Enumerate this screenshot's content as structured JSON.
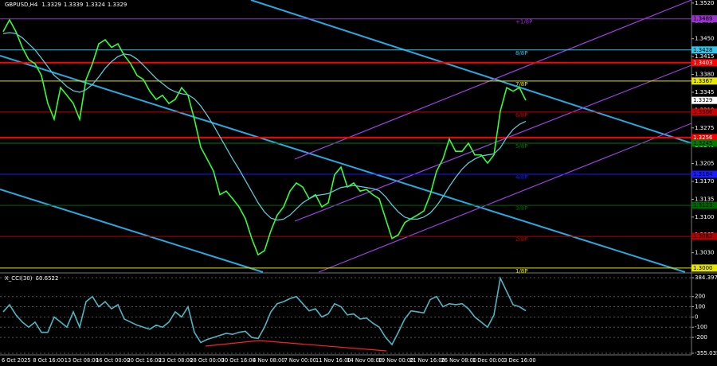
{
  "header": {
    "symbol": "GBPUSD,H4",
    "ohlc": [
      1.3329,
      1.3339,
      1.3324,
      1.3329
    ]
  },
  "chart_data": [
    {
      "type": "line",
      "x_labels": [
        "6 Oct 2025",
        "8 Oct 16:00",
        "13 Oct 08:00",
        "16 Oct 00:00",
        "20 Oct 16:00",
        "23 Oct 08:00",
        "28 Oct 00:00",
        "30 Oct 16:00",
        "4 Nov 08:00",
        "7 Nov 00:00",
        "11 Nov 16:00",
        "14 Nov 08:00",
        "19 Nov 00:00",
        "21 Nov 16:00",
        "26 Nov 08:00",
        "1 Dec 00:00",
        "3 Dec 16:00"
      ],
      "ylim": [
        1.2992,
        1.3526
      ],
      "yticks": [
        {
          "value": 1.352,
          "label": "1.3520"
        },
        {
          "value": 1.3485,
          "label": "1.3485"
        },
        {
          "value": 1.345,
          "label": "1.3450"
        },
        {
          "value": 1.3415,
          "label": "1.3415"
        },
        {
          "value": 1.338,
          "label": "1.3380"
        },
        {
          "value": 1.3345,
          "label": "1.3345"
        },
        {
          "value": 1.331,
          "label": "1.3310"
        },
        {
          "value": 1.3275,
          "label": "1.3275"
        },
        {
          "value": 1.324,
          "label": "1.3240"
        },
        {
          "value": 1.3205,
          "label": "1.3205"
        },
        {
          "value": 1.317,
          "label": "1.3170"
        },
        {
          "value": 1.3135,
          "label": "1.3135"
        },
        {
          "value": 1.31,
          "label": "1.3100"
        },
        {
          "value": 1.3065,
          "label": "1.3065"
        },
        {
          "value": 1.303,
          "label": "1.3030"
        }
      ],
      "series": [
        {
          "color": "#33ff33",
          "values": [
            1.3464,
            1.3487,
            1.3464,
            1.3433,
            1.3409,
            1.3401,
            1.3378,
            1.3323,
            1.3292,
            1.3354,
            1.3339,
            1.3323,
            1.3292,
            1.337,
            1.3401,
            1.344,
            1.3448,
            1.3433,
            1.344,
            1.3417,
            1.3401,
            1.3378,
            1.337,
            1.3347,
            1.3331,
            1.3339,
            1.3323,
            1.3331,
            1.3354,
            1.3339,
            1.3292,
            1.3237,
            1.3214,
            1.319,
            1.3144,
            1.3151,
            1.3136,
            1.312,
            1.3097,
            1.3058,
            1.3026,
            1.3034,
            1.3073,
            1.3104,
            1.312,
            1.3151,
            1.3167,
            1.3159,
            1.3136,
            1.3144,
            1.312,
            1.3128,
            1.3183,
            1.3198,
            1.3159,
            1.3167,
            1.3151,
            1.3154,
            1.3144,
            1.3136,
            1.3097,
            1.3058,
            1.3065,
            1.3089,
            1.3097,
            1.3104,
            1.3112,
            1.3144,
            1.319,
            1.3214,
            1.3253,
            1.3229,
            1.3229,
            1.3245,
            1.3222,
            1.3222,
            1.3206,
            1.3222,
            1.3308,
            1.3354,
            1.3347,
            1.3354,
            1.3329
          ]
        },
        {
          "color": "#5bc8d6",
          "values": [
            1.346,
            1.3462,
            1.346,
            1.3452,
            1.344,
            1.3428,
            1.3412,
            1.3395,
            1.3378,
            1.3368,
            1.3356,
            1.3348,
            1.3345,
            1.335,
            1.336,
            1.3375,
            1.3392,
            1.3405,
            1.3415,
            1.342,
            1.3418,
            1.341,
            1.3398,
            1.3385,
            1.3372,
            1.3362,
            1.3352,
            1.3346,
            1.3342,
            1.334,
            1.3332,
            1.3318,
            1.33,
            1.328,
            1.3258,
            1.3236,
            1.3214,
            1.3194,
            1.3172,
            1.315,
            1.3128,
            1.311,
            1.3098,
            1.3094,
            1.3096,
            1.3104,
            1.3116,
            1.3128,
            1.3136,
            1.3142,
            1.3144,
            1.3146,
            1.3152,
            1.3158,
            1.316,
            1.3162,
            1.316,
            1.3158,
            1.3156,
            1.3152,
            1.314,
            1.3124,
            1.311,
            1.31,
            1.3096,
            1.3096,
            1.31,
            1.3108,
            1.3122,
            1.314,
            1.316,
            1.3178,
            1.3194,
            1.3206,
            1.3214,
            1.322,
            1.3222,
            1.3224,
            1.3236,
            1.3256,
            1.3272,
            1.3282,
            1.3288
          ]
        }
      ],
      "levels": [
        {
          "label": "+1/8P",
          "value": 1.3489,
          "color": "#9933cc"
        },
        {
          "label": "8/8P",
          "value": 1.3428,
          "color": "#33c4ea"
        },
        {
          "label": "7/8P",
          "value": 1.3367,
          "color": "#e6e600"
        },
        {
          "label": "6/8P",
          "value": 1.3306,
          "color": "#cc0000"
        },
        {
          "label": "5/8P",
          "value": 1.3245,
          "color": "#007a00"
        },
        {
          "label": "4/8P",
          "value": 1.3184,
          "color": "#1a1aff"
        },
        {
          "label": "3/8P",
          "value": 1.3123,
          "color": "#006400"
        },
        {
          "label": "2/8P",
          "value": 1.3062,
          "color": "#b30000"
        },
        {
          "label": "1/8P",
          "value": {
            "value": 1.3,
            "label": "1.3000"
          },
          "color": "#e6e600"
        }
      ],
      "lines": [
        {
          "value": 1.3403,
          "color": "#ff0000"
        },
        {
          "value": 1.3256,
          "color": "#ff0000"
        }
      ]
    },
    {
      "type": "line",
      "title": "X_CCI(30)",
      "ylim": [
        -355.0351,
        384.3971
      ],
      "yticks": [
        -355.0351,
        -200,
        -100,
        0,
        100,
        200,
        384.3971
      ],
      "series": [
        {
          "color": "#4fb5c4",
          "values": [
            50,
            120,
            20,
            -50,
            -100,
            -50,
            -150,
            -150,
            0,
            -50,
            -100,
            50,
            -100,
            150,
            200,
            100,
            150,
            80,
            120,
            -20,
            -50,
            -80,
            -100,
            -120,
            -80,
            -100,
            -50,
            50,
            0,
            100,
            -150,
            -250,
            -220,
            -200,
            -180,
            -160,
            -170,
            -150,
            -140,
            -200,
            -210,
            -100,
            50,
            130,
            150,
            180,
            200,
            130,
            60,
            80,
            0,
            30,
            130,
            100,
            20,
            30,
            -20,
            -10,
            -60,
            -100,
            -200,
            -270,
            -150,
            -20,
            60,
            50,
            40,
            170,
            200,
            100,
            130,
            120,
            130,
            80,
            0,
            -50,
            -100,
            20,
            380,
            250,
            120,
            100,
            60.6522
          ]
        }
      ]
    }
  ]
}
